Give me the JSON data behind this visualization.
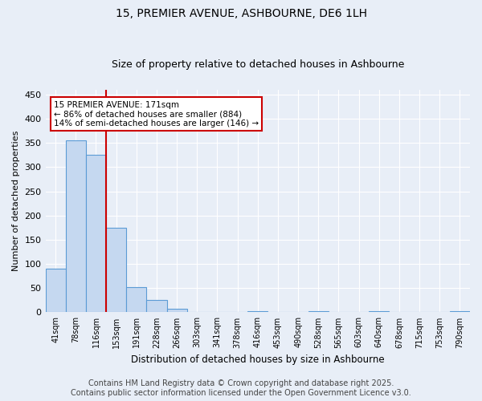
{
  "title": "15, PREMIER AVENUE, ASHBOURNE, DE6 1LH",
  "subtitle": "Size of property relative to detached houses in Ashbourne",
  "xlabel": "Distribution of detached houses by size in Ashbourne",
  "ylabel": "Number of detached properties",
  "bar_categories": [
    "41sqm",
    "78sqm",
    "116sqm",
    "153sqm",
    "191sqm",
    "228sqm",
    "266sqm",
    "303sqm",
    "341sqm",
    "378sqm",
    "416sqm",
    "453sqm",
    "490sqm",
    "528sqm",
    "565sqm",
    "603sqm",
    "640sqm",
    "678sqm",
    "715sqm",
    "753sqm",
    "790sqm"
  ],
  "bar_values": [
    90,
    355,
    325,
    175,
    52,
    25,
    8,
    0,
    0,
    0,
    3,
    0,
    0,
    3,
    0,
    0,
    3,
    0,
    0,
    0,
    3
  ],
  "bar_color": "#c5d8f0",
  "bar_edge_color": "#5b9bd5",
  "vline_x": 3.0,
  "vline_color": "#cc0000",
  "annotation_text": "15 PREMIER AVENUE: 171sqm\n← 86% of detached houses are smaller (884)\n14% of semi-detached houses are larger (146) →",
  "annotation_box_color": "#ffffff",
  "annotation_box_edge_color": "#cc0000",
  "annotation_fontsize": 7.5,
  "ylim": [
    0,
    460
  ],
  "yticks": [
    0,
    50,
    100,
    150,
    200,
    250,
    300,
    350,
    400,
    450
  ],
  "bg_color": "#e8eef7",
  "plot_bg_color": "#e8eef7",
  "grid_color": "#ffffff",
  "title_fontsize": 10,
  "subtitle_fontsize": 9,
  "footer_text": "Contains HM Land Registry data © Crown copyright and database right 2025.\nContains public sector information licensed under the Open Government Licence v3.0.",
  "footer_fontsize": 7
}
